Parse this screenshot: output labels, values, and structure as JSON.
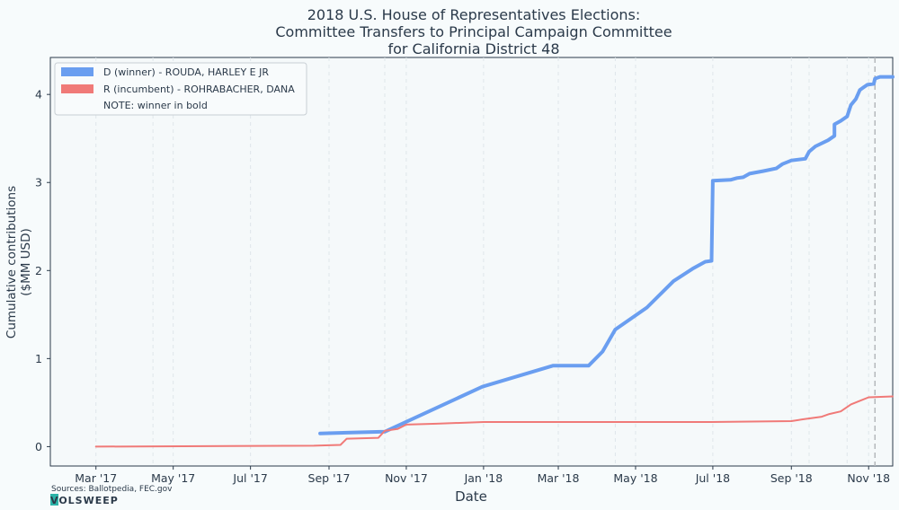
{
  "chart_data": {
    "type": "line",
    "title_lines": [
      "2018 U.S. House of Representatives Elections:",
      "Committee Transfers to Principal Campaign Committee",
      "for California District 48"
    ],
    "xlabel": "Date",
    "ylabel_lines": [
      "Cumulative contributions",
      "($MM USD)"
    ],
    "x_ticks": [
      {
        "date": "2017-03-01",
        "label": "Mar '17"
      },
      {
        "date": "2017-05-01",
        "label": "May '17"
      },
      {
        "date": "2017-07-01",
        "label": "Jul '17"
      },
      {
        "date": "2017-09-01",
        "label": "Sep '17"
      },
      {
        "date": "2017-11-01",
        "label": "Nov '17"
      },
      {
        "date": "2018-01-01",
        "label": "Jan '18"
      },
      {
        "date": "2018-03-01",
        "label": "Mar '18"
      },
      {
        "date": "2018-05-01",
        "label": "May '18"
      },
      {
        "date": "2018-07-01",
        "label": "Jul '18"
      },
      {
        "date": "2018-09-01",
        "label": "Sep '18"
      },
      {
        "date": "2018-11-01",
        "label": "Nov '18"
      }
    ],
    "y_ticks": [
      0,
      1,
      2,
      3,
      4
    ],
    "xlim": [
      "2017-01-24",
      "2018-11-20"
    ],
    "ylim": [
      -0.22,
      4.42
    ],
    "vlines_light": [
      "2017-04-15",
      "2017-10-15",
      "2018-04-15",
      "2018-09-15",
      "2018-10-15"
    ],
    "election_line": "2018-11-06",
    "grid": "vertical-dashed",
    "legend_position": "top-left",
    "series": [
      {
        "name": "D (winner) - ROUDA, HARLEY E JR",
        "color": "#6a9ef0",
        "bold": true,
        "points": [
          [
            "2017-08-25",
            0.15
          ],
          [
            "2017-10-15",
            0.17
          ],
          [
            "2017-12-31",
            0.68
          ],
          [
            "2018-02-25",
            0.92
          ],
          [
            "2018-03-25",
            0.92
          ],
          [
            "2018-04-05",
            1.08
          ],
          [
            "2018-04-15",
            1.33
          ],
          [
            "2018-05-10",
            1.58
          ],
          [
            "2018-05-31",
            1.88
          ],
          [
            "2018-06-15",
            2.02
          ],
          [
            "2018-06-25",
            2.1
          ],
          [
            "2018-06-30",
            2.11
          ],
          [
            "2018-07-01",
            3.02
          ],
          [
            "2018-07-15",
            3.03
          ],
          [
            "2018-07-20",
            3.05
          ],
          [
            "2018-07-25",
            3.06
          ],
          [
            "2018-07-30",
            3.1
          ],
          [
            "2018-08-10",
            3.13
          ],
          [
            "2018-08-20",
            3.16
          ],
          [
            "2018-08-25",
            3.21
          ],
          [
            "2018-09-01",
            3.25
          ],
          [
            "2018-09-12",
            3.27
          ],
          [
            "2018-09-15",
            3.35
          ],
          [
            "2018-09-20",
            3.41
          ],
          [
            "2018-09-30",
            3.48
          ],
          [
            "2018-10-05",
            3.53
          ],
          [
            "2018-10-05",
            3.66
          ],
          [
            "2018-10-10",
            3.7
          ],
          [
            "2018-10-15",
            3.75
          ],
          [
            "2018-10-18",
            3.88
          ],
          [
            "2018-10-22",
            3.95
          ],
          [
            "2018-10-25",
            4.05
          ],
          [
            "2018-10-28",
            4.08
          ],
          [
            "2018-10-31",
            4.11
          ],
          [
            "2018-11-05",
            4.12
          ],
          [
            "2018-11-06",
            4.18
          ],
          [
            "2018-11-10",
            4.2
          ],
          [
            "2018-11-20",
            4.2
          ]
        ]
      },
      {
        "name": "R (incumbent) - ROHRABACHER, DANA",
        "color": "#f07a78",
        "bold": false,
        "points": [
          [
            "2017-03-01",
            0.0
          ],
          [
            "2017-08-20",
            0.01
          ],
          [
            "2017-09-10",
            0.02
          ],
          [
            "2017-09-15",
            0.09
          ],
          [
            "2017-10-10",
            0.1
          ],
          [
            "2017-10-15",
            0.18
          ],
          [
            "2017-10-25",
            0.2
          ],
          [
            "2017-11-01",
            0.25
          ],
          [
            "2017-11-25",
            0.26
          ],
          [
            "2018-01-01",
            0.28
          ],
          [
            "2018-06-30",
            0.28
          ],
          [
            "2018-09-01",
            0.29
          ],
          [
            "2018-09-10",
            0.31
          ],
          [
            "2018-09-25",
            0.34
          ],
          [
            "2018-10-01",
            0.37
          ],
          [
            "2018-10-10",
            0.4
          ],
          [
            "2018-10-18",
            0.48
          ],
          [
            "2018-10-25",
            0.52
          ],
          [
            "2018-11-01",
            0.56
          ],
          [
            "2018-11-20",
            0.57
          ]
        ]
      }
    ],
    "legend_note": "NOTE: winner in bold"
  },
  "footer": {
    "sources": "Sources: Ballotpedia, FEC.gov",
    "logo": "VOLSWEEP"
  }
}
